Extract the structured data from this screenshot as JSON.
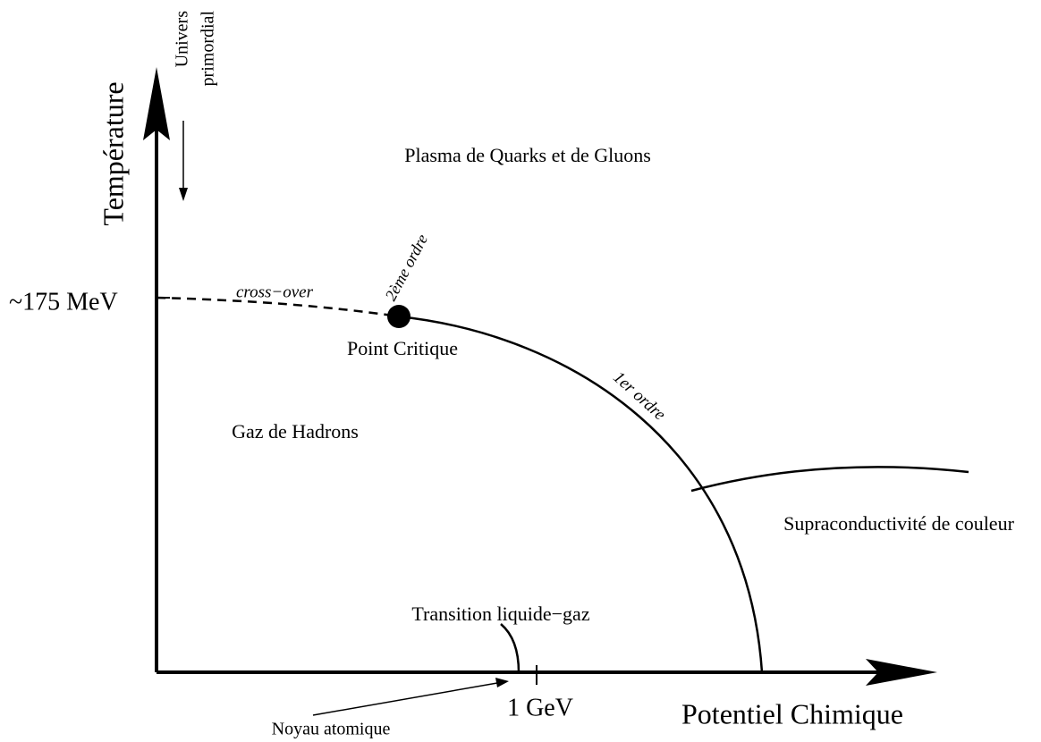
{
  "axes": {
    "y_label": "Température",
    "x_label": "Potentiel Chimique",
    "y_tick": "~175 MeV",
    "x_tick": "1 GeV"
  },
  "annotations": {
    "early_universe": [
      "Univers",
      "primordial"
    ],
    "nucleus": "Noyau atomique"
  },
  "regions": {
    "qgp": "Plasma de Quarks et de Gluons",
    "hadron_gas": "Gaz de Hadrons",
    "color_superconductivity": "Supraconductivité de couleur"
  },
  "lines": {
    "crossover": "cross−over",
    "second_order": "2ème ordre",
    "first_order": "1er ordre",
    "liquid_gas": "Transition liquide−gaz"
  },
  "points": {
    "critical_point": "Point Critique"
  }
}
